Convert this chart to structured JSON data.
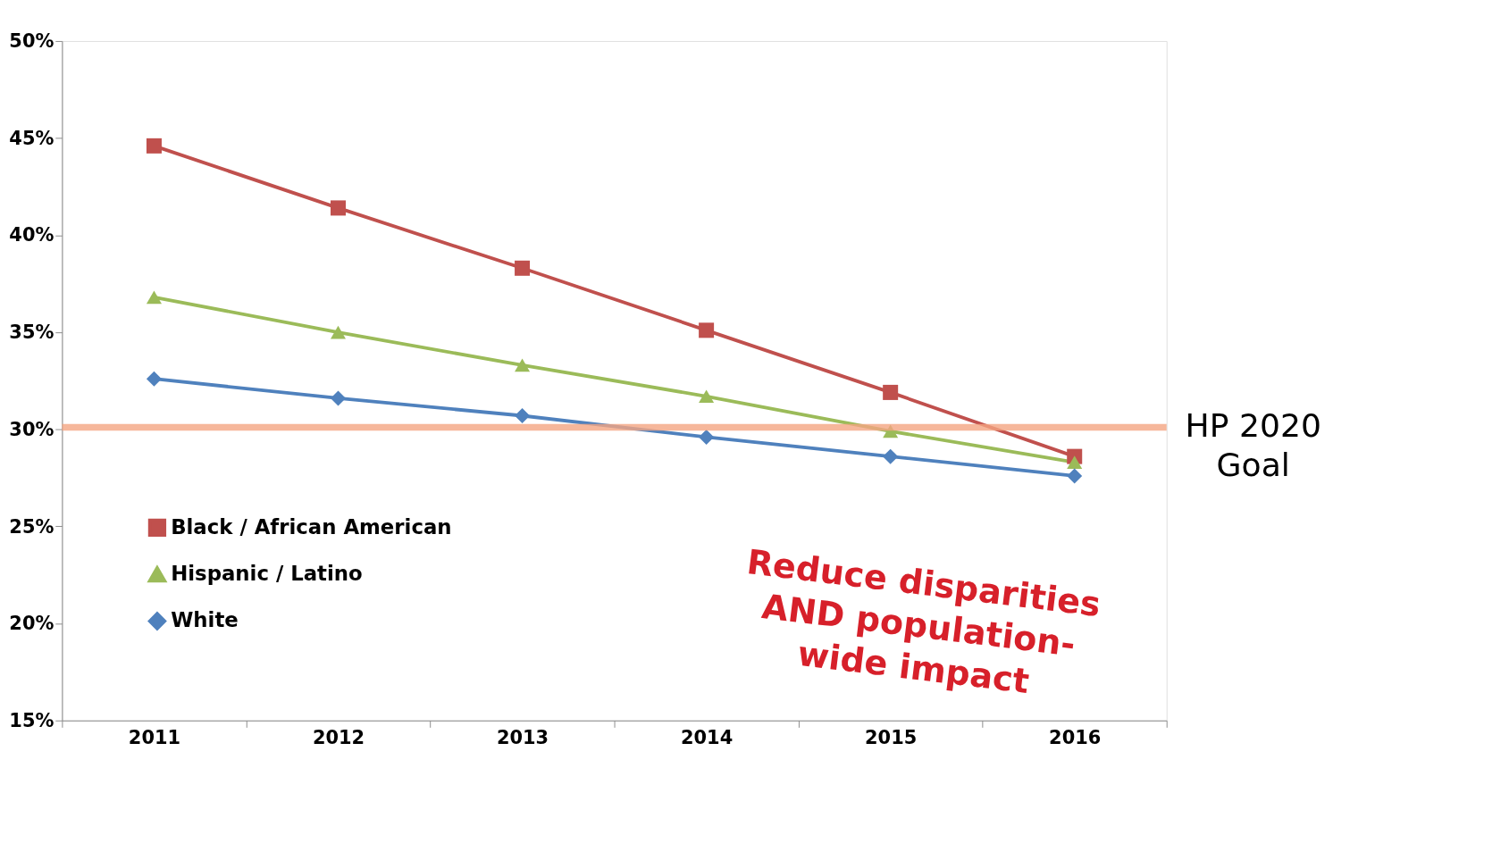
{
  "chart_data": {
    "type": "line",
    "categories": [
      "2011",
      "2012",
      "2013",
      "2014",
      "2015",
      "2016"
    ],
    "series": [
      {
        "name": "Black / African American",
        "color": "#c0504d",
        "marker": "square",
        "values": [
          44.6,
          41.4,
          38.3,
          35.1,
          31.9,
          28.6
        ]
      },
      {
        "name": "Hispanic / Latino",
        "color": "#9bbb59",
        "marker": "triangle",
        "values": [
          36.8,
          35.0,
          33.3,
          31.7,
          29.9,
          28.3
        ]
      },
      {
        "name": "White",
        "color": "#4f81bd",
        "marker": "diamond",
        "values": [
          32.6,
          31.6,
          30.7,
          29.6,
          28.6,
          27.6
        ]
      }
    ],
    "ylim": [
      15,
      50
    ],
    "yticks": [
      {
        "value": 15,
        "label": "15%"
      },
      {
        "value": 20,
        "label": "20%"
      },
      {
        "value": 25,
        "label": "25%"
      },
      {
        "value": 30,
        "label": "30%"
      },
      {
        "value": 35,
        "label": "35%"
      },
      {
        "value": 40,
        "label": "40%"
      },
      {
        "value": 45,
        "label": "45%"
      },
      {
        "value": 50,
        "label": "50%"
      }
    ],
    "ref_lines": [
      {
        "axis": "y",
        "value": 30.1,
        "label": "HP 2020\nGoal",
        "color": "#f4a582"
      }
    ],
    "annotations": [
      "Reduce disparities\nAND population-\nwide impact"
    ],
    "legend": "bottom left",
    "grid": false,
    "line_style": "solid"
  }
}
